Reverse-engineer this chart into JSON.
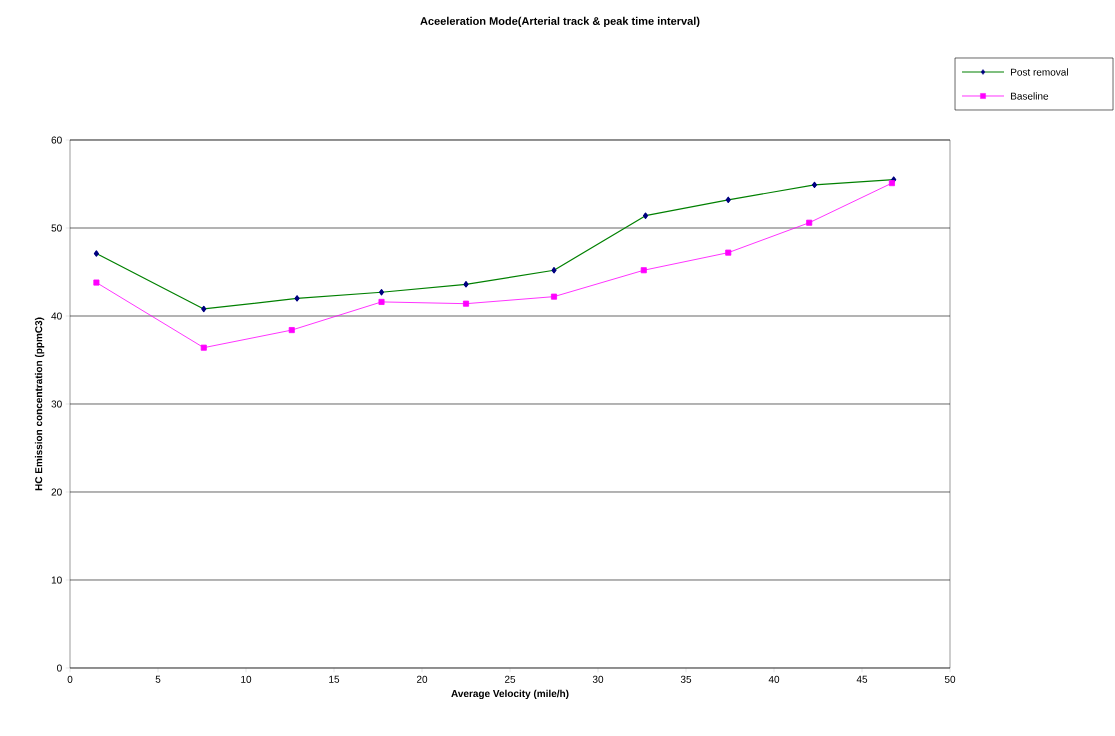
{
  "chart_data": {
    "type": "line",
    "title": "Aceeleration Mode(Arterial track & peak time interval)",
    "xlabel": "Average Velocity (mile/h)",
    "ylabel": "HC Emission concentration (ppmC3)",
    "xlim": [
      0,
      50
    ],
    "ylim": [
      0,
      60
    ],
    "xticks": [
      0,
      5,
      10,
      15,
      20,
      25,
      30,
      35,
      40,
      45,
      50
    ],
    "yticks": [
      0,
      10,
      20,
      30,
      40,
      50,
      60
    ],
    "grid": "y",
    "legend": "top right",
    "series": [
      {
        "name": "Post removal",
        "color": "#008000",
        "marker": "diamond",
        "colors": [
          "#000080",
          "#000080",
          "#000080",
          "#000080",
          "#000080",
          "#000080",
          "#000080",
          "#000080",
          "#000080",
          "#000080"
        ],
        "x": [
          1.5,
          7.6,
          12.9,
          17.7,
          22.5,
          27.5,
          32.7,
          37.4,
          42.3,
          46.8
        ],
        "values": [
          47.1,
          40.8,
          42.0,
          42.7,
          43.6,
          45.2,
          51.4,
          53.2,
          54.9,
          55.5
        ]
      },
      {
        "name": "Baseline",
        "color": "#ff00ff",
        "marker": "square",
        "x": [
          1.5,
          7.6,
          12.6,
          17.7,
          22.5,
          27.5,
          32.6,
          37.4,
          42.0,
          46.7
        ],
        "values": [
          43.8,
          36.4,
          38.4,
          41.6,
          41.4,
          42.2,
          45.2,
          47.2,
          50.6,
          55.1
        ]
      }
    ]
  }
}
